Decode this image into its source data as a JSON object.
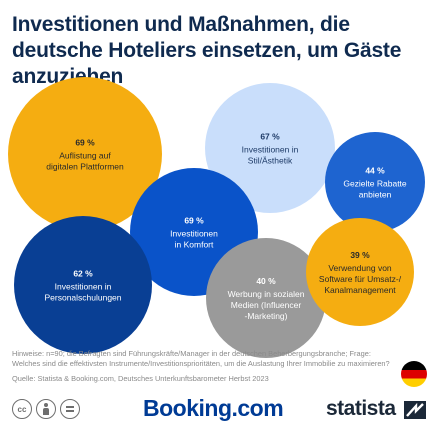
{
  "title": "Investitionen und Maßnahmen, die deutsche Hoteliers einsetzen, um Gäste anzuziehen",
  "chart_data": {
    "type": "bubble",
    "unit": "%",
    "items": [
      {
        "label": "Auflistung auf digitalen Plattformen",
        "value": 69,
        "value_label": "69 %",
        "color": "#f5ad11"
      },
      {
        "label": "Investitionen in Stil/Ästhetik",
        "value": 67,
        "value_label": "67 %",
        "color": "#c9defb"
      },
      {
        "label": "Gezielte Rabatte anbieten",
        "value": 44,
        "value_label": "44 %",
        "color": "#1e64d0"
      },
      {
        "label": "Investitionen in Komfort",
        "value": 69,
        "value_label": "69 %",
        "color": "#0a53c9"
      },
      {
        "label": "Investitionen in Personalschulungen",
        "value": 62,
        "value_label": "62 %",
        "color": "#093f94"
      },
      {
        "label": "Werbung in sozialen Medien (Influencer -Marketing)",
        "value": 40,
        "value_label": "40 %",
        "color": "#9a9a9a"
      },
      {
        "label": "Verwendung von Software für Umsatz-/ Kanalmanagement",
        "value": 39,
        "value_label": "39 %",
        "color": "#f5ad11"
      }
    ]
  },
  "notes": "Hinweise: n=90; die Befragten sind Führungskräfte/Manager in der deutschen Beherbergungsbranche; Frage: Welches sind die effektivsten Instrumente/Investitionsprioritäten, um die Auslastung Ihrer Immobilie zu maximieren?",
  "source": "Quelle: Statista & Booking.com, Deutsches Unterkunftsbarometer Herbst 2023",
  "footer": {
    "cc_label": "cc",
    "booking_logo": "Booking.com",
    "statista_logo": "statista"
  },
  "colors": {
    "title": "#0f2a4f",
    "booking": "#003b95",
    "flag_black": "#000000",
    "flag_red": "#dd0000",
    "flag_gold": "#ffce00"
  }
}
